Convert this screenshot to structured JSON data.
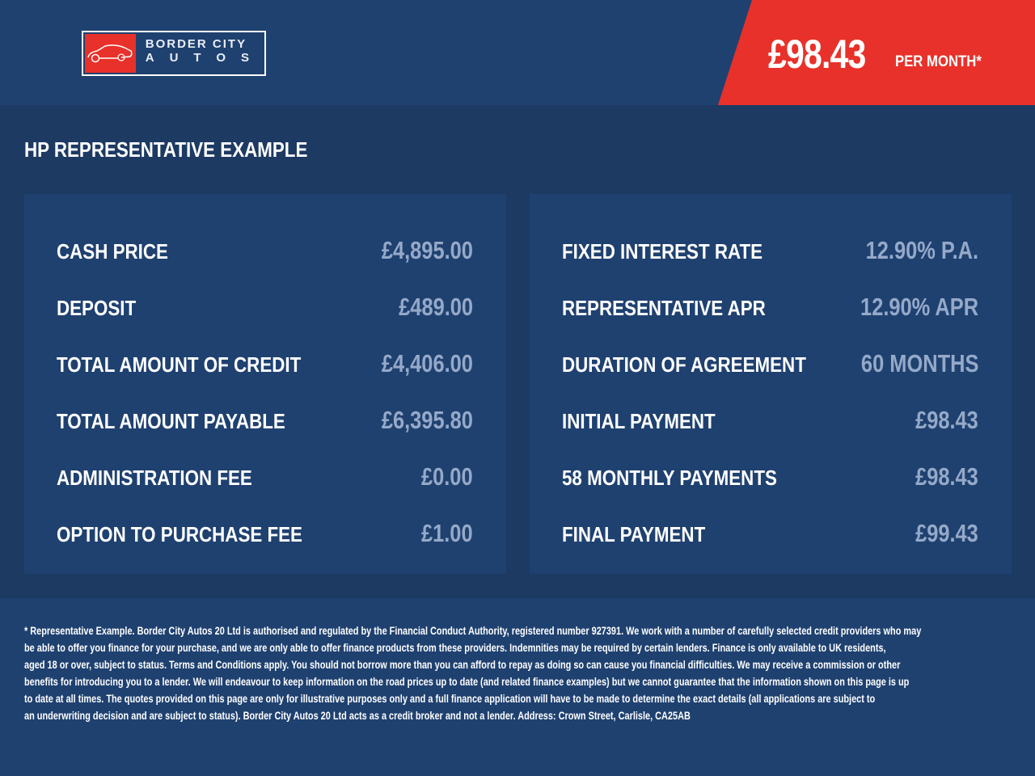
{
  "brand": {
    "name_line1": "BORDER CITY",
    "name_line2": "AUTOS",
    "logo_icon": "car-icon",
    "accent": "#e8312a",
    "background": "#1f4170"
  },
  "headline": {
    "price": "£98.43",
    "per": "PER MONTH*"
  },
  "section_title": "HP REPRESENTATIVE EXAMPLE",
  "left_rows": [
    {
      "label": "CASH PRICE",
      "value": "£4,895.00"
    },
    {
      "label": "DEPOSIT",
      "value": "£489.00"
    },
    {
      "label": "TOTAL AMOUNT OF CREDIT",
      "value": "£4,406.00"
    },
    {
      "label": "TOTAL AMOUNT PAYABLE",
      "value": "£6,395.80"
    },
    {
      "label": "ADMINISTRATION FEE",
      "value": "£0.00"
    },
    {
      "label": "OPTION TO PURCHASE FEE",
      "value": "£1.00"
    }
  ],
  "right_rows": [
    {
      "label": "FIXED INTEREST RATE",
      "value": "12.90% P.A."
    },
    {
      "label": "REPRESENTATIVE APR",
      "value": "12.90% APR"
    },
    {
      "label": "DURATION OF AGREEMENT",
      "value": "60 MONTHS"
    },
    {
      "label": "INITIAL PAYMENT",
      "value": "£98.43"
    },
    {
      "label": "58 MONTHLY PAYMENTS",
      "value": "£98.43"
    },
    {
      "label": "FINAL PAYMENT",
      "value": "£99.43"
    }
  ],
  "disclaimer_lines": [
    "* Representative Example. Border City Autos 20 Ltd is authorised and regulated by the Financial Conduct Authority, registered number 927391. We work with a number of carefully selected credit providers who may",
    "be able to offer you finance for your purchase, and we are only able to offer finance products from these providers. Indemnities may be required by certain lenders. Finance is only available to UK residents,",
    "aged 18 or over, subject to status. Terms and Conditions apply. You should not borrow more than you can afford to repay as doing so can cause you financial difficulties. We may receive a commission or other",
    "benefits for introducing you to a lender. We will endeavour to keep information on the road prices up to date (and related finance examples) but we cannot guarantee that the information shown on this page is up",
    "to date at all times. The quotes provided on this page are only for illustrative purposes only and a full finance application will have to be made to determine the exact details (all applications are subject to",
    "an underwriting decision and are subject to status). Border City Autos 20 Ltd acts as a credit broker and not a lender. Address: Crown Street, Carlisle, CA25AB"
  ]
}
